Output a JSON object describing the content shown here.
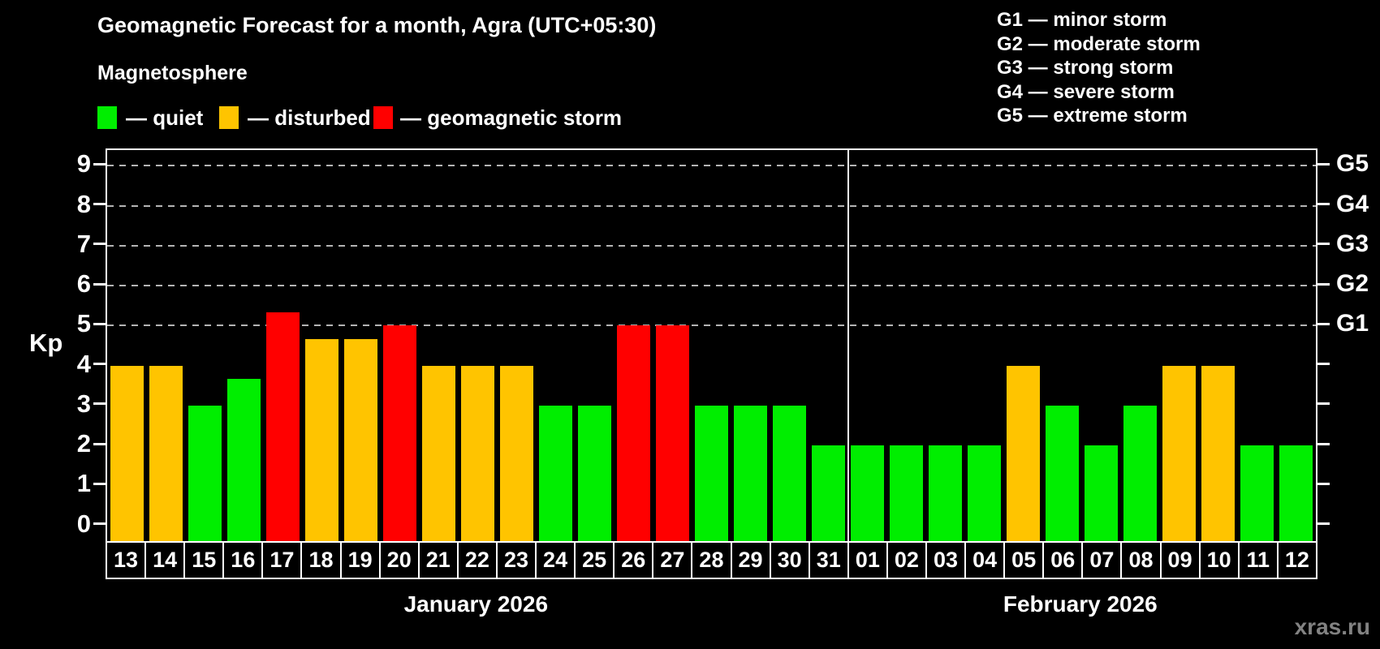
{
  "title": "Geomagnetic Forecast for a month, Agra (UTC+05:30)",
  "subtitle": "Magnetosphere",
  "legend": {
    "items": [
      {
        "name": "quiet",
        "label": "— quiet",
        "color": "#00ee00"
      },
      {
        "name": "disturbed",
        "label": "— disturbed",
        "color": "#ffc400"
      },
      {
        "name": "storm",
        "label": "— geomagnetic storm",
        "color": "#ff0000"
      }
    ]
  },
  "storm_scale_legend": [
    "G1 — minor storm",
    "G2 — moderate storm",
    "G3 — strong storm",
    "G4 — severe storm",
    "G5 — extreme storm"
  ],
  "chart_data": {
    "type": "bar",
    "title": "Geomagnetic Forecast for a month, Agra (UTC+05:30)",
    "ylabel": "Kp",
    "ylim": [
      0,
      9
    ],
    "grid": "dashed horizontal at Kp 5-9",
    "y_ticks": [
      "0",
      "1",
      "2",
      "3",
      "4",
      "5",
      "6",
      "7",
      "8",
      "9"
    ],
    "g_levels": [
      {
        "label": "G1",
        "kp": 5
      },
      {
        "label": "G2",
        "kp": 6
      },
      {
        "label": "G3",
        "kp": 7
      },
      {
        "label": "G4",
        "kp": 8
      },
      {
        "label": "G5",
        "kp": 9
      }
    ],
    "grid_kp": [
      5,
      6,
      7,
      8,
      9
    ],
    "months": [
      {
        "label": "January 2026",
        "days": 19
      },
      {
        "label": "February 2026",
        "days": 12
      }
    ],
    "categories": [
      "13",
      "14",
      "15",
      "16",
      "17",
      "18",
      "19",
      "20",
      "21",
      "22",
      "23",
      "24",
      "25",
      "26",
      "27",
      "28",
      "29",
      "30",
      "31",
      "01",
      "02",
      "03",
      "04",
      "05",
      "06",
      "07",
      "08",
      "09",
      "10",
      "11",
      "12"
    ],
    "values": [
      4,
      4,
      3,
      3.67,
      5.33,
      4.67,
      4.67,
      5,
      4,
      4,
      4,
      3,
      3,
      5,
      5,
      3,
      3,
      3,
      2,
      2,
      2,
      2,
      2,
      4,
      3,
      2,
      3,
      4,
      4,
      2,
      2
    ],
    "statuses": [
      "disturbed",
      "disturbed",
      "quiet",
      "quiet",
      "storm",
      "disturbed",
      "disturbed",
      "storm",
      "disturbed",
      "disturbed",
      "disturbed",
      "quiet",
      "quiet",
      "storm",
      "storm",
      "quiet",
      "quiet",
      "quiet",
      "quiet",
      "quiet",
      "quiet",
      "quiet",
      "quiet",
      "disturbed",
      "quiet",
      "quiet",
      "quiet",
      "disturbed",
      "disturbed",
      "quiet",
      "quiet"
    ]
  },
  "colors": {
    "quiet": "#00ee00",
    "disturbed": "#ffc400",
    "storm": "#ff0000",
    "grid": "#b4b4b4",
    "axis": "#ffffff",
    "background": "#000000"
  },
  "watermark": "xras.ru"
}
